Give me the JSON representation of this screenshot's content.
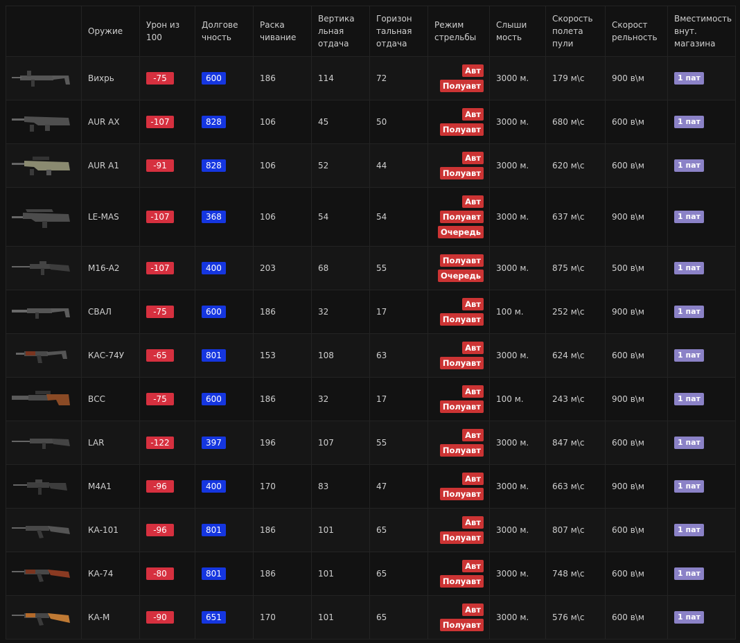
{
  "headers": {
    "weapon": "Оружие",
    "damage": "Урон из 100",
    "durability": "Долгове чность",
    "sway": "Раска чивание",
    "vrecoil": "Вертика льная отдача",
    "hrecoil": "Горизон тальная отдача",
    "mode": "Режим стрельбы",
    "hearing": "Слыши мость",
    "velocity": "Скорость полета пули",
    "rate": "Скорост рельность",
    "magazine": "Вместимость внут. магазина"
  },
  "colors": {
    "damage_badge": "#d6303f",
    "durability_badge": "#1536e0",
    "mode_badge": "#cc3434",
    "magazine_badge": "#8b82c7",
    "background": "#121212"
  },
  "rows": [
    {
      "name": "Вихрь",
      "icon": "smg-icon",
      "damage": "-75",
      "durability": "600",
      "sway": "186",
      "vrecoil": "114",
      "hrecoil": "72",
      "modes": [
        "Авт",
        "Полуавт"
      ],
      "hearing": "3000 м.",
      "velocity": "179 м\\с",
      "rate": "900 в\\м",
      "magazine": "1 пат"
    },
    {
      "name": "AUR AX",
      "icon": "bullpup-rifle-icon",
      "damage": "-107",
      "durability": "828",
      "sway": "106",
      "vrecoil": "45",
      "hrecoil": "50",
      "modes": [
        "Авт",
        "Полуавт"
      ],
      "hearing": "3000 м.",
      "velocity": "680 м\\с",
      "rate": "600 в\\м",
      "magazine": "1 пат"
    },
    {
      "name": "AUR A1",
      "icon": "bullpup-scoped-rifle-icon",
      "damage": "-91",
      "durability": "828",
      "sway": "106",
      "vrecoil": "52",
      "hrecoil": "44",
      "modes": [
        "Авт",
        "Полуавт"
      ],
      "hearing": "3000 м.",
      "velocity": "620 м\\с",
      "rate": "600 в\\м",
      "magazine": "1 пат"
    },
    {
      "name": "LE-MAS",
      "icon": "bullpup-carry-handle-rifle-icon",
      "damage": "-107",
      "durability": "368",
      "sway": "106",
      "vrecoil": "54",
      "hrecoil": "54",
      "modes": [
        "Авт",
        "Полуавт",
        "Очередь"
      ],
      "hearing": "3000 м.",
      "velocity": "637 м\\с",
      "rate": "900 в\\м",
      "magazine": "1 пат"
    },
    {
      "name": "M16-A2",
      "icon": "m16-rifle-icon",
      "damage": "-107",
      "durability": "400",
      "sway": "203",
      "vrecoil": "68",
      "hrecoil": "55",
      "modes": [
        "Полуавт",
        "Очередь"
      ],
      "hearing": "3000 м.",
      "velocity": "875 м\\с",
      "rate": "500 в\\м",
      "magazine": "1 пат"
    },
    {
      "name": "СВАЛ",
      "icon": "suppressed-smg-icon",
      "damage": "-75",
      "durability": "600",
      "sway": "186",
      "vrecoil": "32",
      "hrecoil": "17",
      "modes": [
        "Авт",
        "Полуавт"
      ],
      "hearing": "100 м.",
      "velocity": "252 м\\с",
      "rate": "900 в\\м",
      "magazine": "1 пат"
    },
    {
      "name": "КАС-74У",
      "icon": "compact-ak-icon",
      "damage": "-65",
      "durability": "801",
      "sway": "153",
      "vrecoil": "108",
      "hrecoil": "63",
      "modes": [
        "Авт",
        "Полуавт"
      ],
      "hearing": "3000 м.",
      "velocity": "624 м\\с",
      "rate": "600 в\\м",
      "magazine": "1 пат"
    },
    {
      "name": "ВСС",
      "icon": "suppressed-sniper-rifle-icon",
      "damage": "-75",
      "durability": "600",
      "sway": "186",
      "vrecoil": "32",
      "hrecoil": "17",
      "modes": [
        "Авт",
        "Полуавт"
      ],
      "hearing": "100 м.",
      "velocity": "243 м\\с",
      "rate": "900 в\\м",
      "magazine": "1 пат"
    },
    {
      "name": "LAR",
      "icon": "battle-rifle-icon",
      "damage": "-122",
      "durability": "397",
      "sway": "196",
      "vrecoil": "107",
      "hrecoil": "55",
      "modes": [
        "Авт",
        "Полуавт"
      ],
      "hearing": "3000 м.",
      "velocity": "847 м\\с",
      "rate": "600 в\\м",
      "magazine": "1 пат"
    },
    {
      "name": "M4A1",
      "icon": "carbine-icon",
      "damage": "-96",
      "durability": "400",
      "sway": "170",
      "vrecoil": "83",
      "hrecoil": "47",
      "modes": [
        "Авт",
        "Полуавт"
      ],
      "hearing": "3000 м.",
      "velocity": "663 м\\с",
      "rate": "900 в\\м",
      "magazine": "1 пат"
    },
    {
      "name": "КА-101",
      "icon": "ak-rifle-icon",
      "damage": "-96",
      "durability": "801",
      "sway": "186",
      "vrecoil": "101",
      "hrecoil": "65",
      "modes": [
        "Авт",
        "Полуавт"
      ],
      "hearing": "3000 м.",
      "velocity": "807 м\\с",
      "rate": "600 в\\м",
      "magazine": "1 пат"
    },
    {
      "name": "КА-74",
      "icon": "ak-wood-rifle-icon",
      "damage": "-80",
      "durability": "801",
      "sway": "186",
      "vrecoil": "101",
      "hrecoil": "65",
      "modes": [
        "Авт",
        "Полуавт"
      ],
      "hearing": "3000 м.",
      "velocity": "748 м\\с",
      "rate": "600 в\\м",
      "magazine": "1 пат"
    },
    {
      "name": "КА-М",
      "icon": "akm-wood-rifle-icon",
      "damage": "-90",
      "durability": "651",
      "sway": "170",
      "vrecoil": "101",
      "hrecoil": "65",
      "modes": [
        "Авт",
        "Полуавт"
      ],
      "hearing": "3000 м.",
      "velocity": "576 м\\с",
      "rate": "600 в\\м",
      "magazine": "1 пат"
    }
  ]
}
